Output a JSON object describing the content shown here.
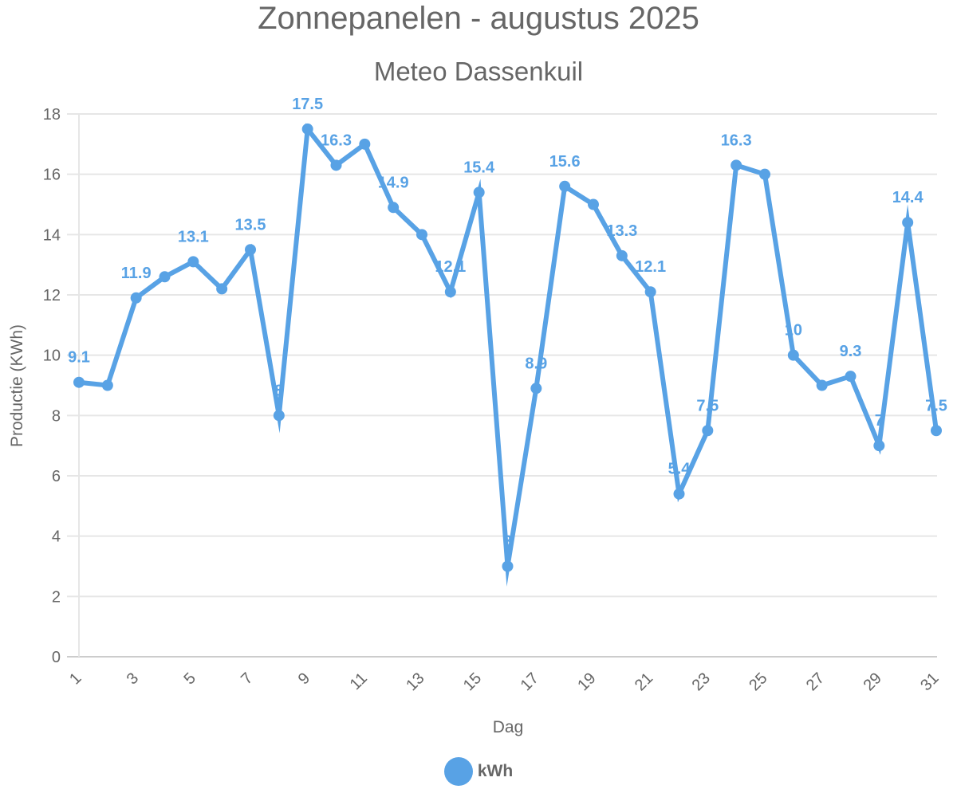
{
  "title": "Zonnepanelen - augustus 2025",
  "subtitle": "Meteo Dassenkuil",
  "legend": {
    "label": "kWh",
    "color": "#58a2e5"
  },
  "chart_data": {
    "type": "line",
    "title": "Zonnepanelen - augustus 2025",
    "subtitle": "Meteo Dassenkuil",
    "xlabel": "Dag",
    "ylabel": "Productie (KWh)",
    "ylim": [
      0,
      18
    ],
    "yticks": [
      0,
      2,
      4,
      6,
      8,
      10,
      12,
      14,
      16,
      18
    ],
    "xticks": [
      "1",
      "3",
      "5",
      "7",
      "9",
      "11",
      "13",
      "15",
      "17",
      "19",
      "21",
      "23",
      "25",
      "27",
      "29",
      "31"
    ],
    "grid": true,
    "legend_position": "bottom",
    "categories": [
      "1",
      "2",
      "3",
      "4",
      "5",
      "6",
      "7",
      "8",
      "9",
      "10",
      "11",
      "12",
      "13",
      "14",
      "15",
      "16",
      "17",
      "18",
      "19",
      "20",
      "21",
      "22",
      "23",
      "24",
      "25",
      "26",
      "27",
      "28",
      "29",
      "30",
      "31"
    ],
    "series": [
      {
        "name": "kWh",
        "color": "#58a2e5",
        "values": [
          9.1,
          9.0,
          11.9,
          12.6,
          13.1,
          12.2,
          13.5,
          8,
          17.5,
          16.3,
          17.0,
          14.9,
          14.0,
          12.1,
          15.4,
          3,
          8.9,
          15.6,
          15.0,
          13.3,
          12.1,
          5.4,
          7.5,
          16.3,
          16.0,
          10,
          9.0,
          9.3,
          7,
          14.4,
          7.5
        ]
      }
    ],
    "data_labels": [
      {
        "day": 1,
        "text": "9.1"
      },
      {
        "day": 3,
        "text": "11.9"
      },
      {
        "day": 5,
        "text": "13.1"
      },
      {
        "day": 7,
        "text": "13.5"
      },
      {
        "day": 8,
        "text": "8"
      },
      {
        "day": 9,
        "text": "17.5"
      },
      {
        "day": 10,
        "text": "16.3"
      },
      {
        "day": 12,
        "text": "14.9"
      },
      {
        "day": 14,
        "text": "12.1"
      },
      {
        "day": 15,
        "text": "15.4"
      },
      {
        "day": 16,
        "text": "3"
      },
      {
        "day": 17,
        "text": "8.9"
      },
      {
        "day": 18,
        "text": "15.6"
      },
      {
        "day": 20,
        "text": "13.3"
      },
      {
        "day": 21,
        "text": "12.1"
      },
      {
        "day": 22,
        "text": "5.4"
      },
      {
        "day": 23,
        "text": "7.5"
      },
      {
        "day": 24,
        "text": "16.3"
      },
      {
        "day": 26,
        "text": "10"
      },
      {
        "day": 28,
        "text": "9.3"
      },
      {
        "day": 29,
        "text": "7"
      },
      {
        "day": 30,
        "text": "14.4"
      },
      {
        "day": 31,
        "text": "7.5"
      }
    ]
  }
}
